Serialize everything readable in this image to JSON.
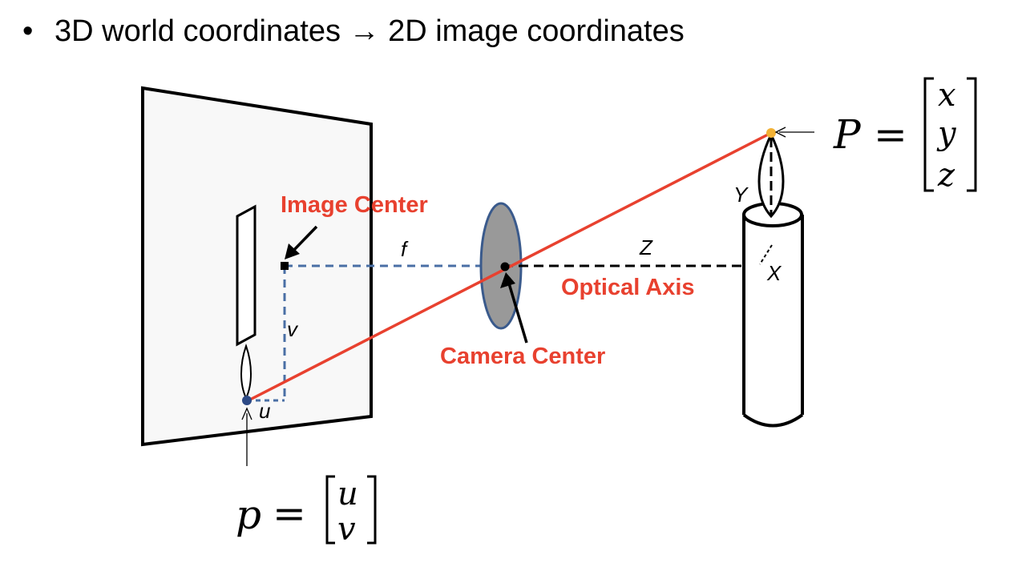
{
  "slide": {
    "bullet_marker": "•",
    "heading": "3D world coordinates → 2D image coordinates"
  },
  "labels": {
    "image_center": "Image Center",
    "camera_center": "Camera Center",
    "optical_axis": "Optical Axis",
    "focal_length": "f",
    "depth": "Z",
    "axis_x": "X",
    "axis_y": "Y",
    "coord_u": "u",
    "coord_v": "v"
  },
  "equations": {
    "image_point": {
      "lhs": "p",
      "equals": "=",
      "entries": [
        "u",
        "v"
      ]
    },
    "world_point": {
      "lhs": "P",
      "equals": "=",
      "entries": [
        "x",
        "y",
        "z"
      ]
    }
  },
  "colors": {
    "ray": "#e8412f",
    "label_red": "#e8412f",
    "dashed_blue": "#4a6fa5",
    "lens_fill": "#999999",
    "lens_stroke": "#3a5a8c",
    "image_point": "#2d4a86",
    "world_point": "#f2b134"
  }
}
